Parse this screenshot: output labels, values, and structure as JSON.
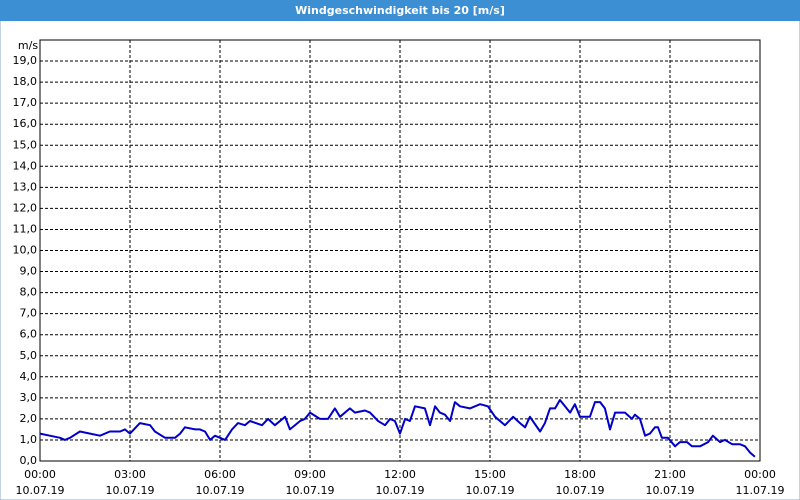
{
  "chart_data": {
    "type": "line",
    "title": "Windgeschwindigkeit bis 20 [m/s]",
    "y_label": "m/s",
    "xlim": [
      0,
      24
    ],
    "ylim": [
      0,
      20
    ],
    "xticks": [
      {
        "value": 0,
        "label": [
          "00:00",
          "10.07.19"
        ]
      },
      {
        "value": 3,
        "label": [
          "03:00",
          "10.07.19"
        ]
      },
      {
        "value": 6,
        "label": [
          "06:00",
          "10.07.19"
        ]
      },
      {
        "value": 9,
        "label": [
          "09:00",
          "10.07.19"
        ]
      },
      {
        "value": 12,
        "label": [
          "12:00",
          "10.07.19"
        ]
      },
      {
        "value": 15,
        "label": [
          "15:00",
          "10.07.19"
        ]
      },
      {
        "value": 18,
        "label": [
          "18:00",
          "10.07.19"
        ]
      },
      {
        "value": 21,
        "label": [
          "21:00",
          "10.07.19"
        ]
      },
      {
        "value": 24,
        "label": [
          "00:00",
          "11.07.19"
        ]
      }
    ],
    "yticks": [
      {
        "value": 0,
        "label": "0,0"
      },
      {
        "value": 1,
        "label": "1,0"
      },
      {
        "value": 2,
        "label": "2,0"
      },
      {
        "value": 3,
        "label": "3,0"
      },
      {
        "value": 4,
        "label": "4,0"
      },
      {
        "value": 5,
        "label": "5,0"
      },
      {
        "value": 6,
        "label": "6,0"
      },
      {
        "value": 7,
        "label": "7,0"
      },
      {
        "value": 8,
        "label": "8,0"
      },
      {
        "value": 9,
        "label": "9,0"
      },
      {
        "value": 10,
        "label": "10,0"
      },
      {
        "value": 11,
        "label": "11,0"
      },
      {
        "value": 12,
        "label": "12,0"
      },
      {
        "value": 13,
        "label": "13,0"
      },
      {
        "value": 14,
        "label": "14,0"
      },
      {
        "value": 15,
        "label": "15,0"
      },
      {
        "value": 16,
        "label": "16,0"
      },
      {
        "value": 17,
        "label": "17,0"
      },
      {
        "value": 18,
        "label": "18,0"
      },
      {
        "value": 19,
        "label": "19,0"
      }
    ],
    "grid": true,
    "x": [
      0,
      0.33,
      0.67,
      0.83,
      1,
      1.33,
      1.67,
      2,
      2.33,
      2.67,
      2.83,
      3,
      3.33,
      3.67,
      3.83,
      4.17,
      4.5,
      4.67,
      4.83,
      5.17,
      5.33,
      5.5,
      5.67,
      5.83,
      6.17,
      6.4,
      6.6,
      6.83,
      7,
      7.4,
      7.6,
      7.83,
      8.17,
      8.33,
      8.67,
      8.83,
      9,
      9.33,
      9.6,
      9.83,
      10,
      10.33,
      10.5,
      10.83,
      11,
      11.27,
      11.5,
      11.67,
      11.83,
      12,
      12.17,
      12.33,
      12.5,
      12.83,
      13,
      13.17,
      13.33,
      13.5,
      13.67,
      13.83,
      14,
      14.33,
      14.67,
      14.93,
      15.17,
      15.5,
      15.77,
      16,
      16.17,
      16.33,
      16.67,
      16.83,
      17,
      17.17,
      17.33,
      17.5,
      17.67,
      17.83,
      18,
      18.33,
      18.5,
      18.67,
      18.83,
      19,
      19.17,
      19.5,
      19.73,
      19.83,
      20,
      20.17,
      20.33,
      20.5,
      20.6,
      20.73,
      20.93,
      21.17,
      21.33,
      21.57,
      21.73,
      22,
      22.27,
      22.43,
      22.67,
      22.83,
      23.07,
      23.33,
      23.5,
      23.67,
      23.83
    ],
    "series": [
      {
        "color": "#0000c8",
        "values": [
          1.3,
          1.2,
          1.1,
          1.0,
          1.1,
          1.4,
          1.3,
          1.2,
          1.4,
          1.4,
          1.5,
          1.3,
          1.8,
          1.7,
          1.4,
          1.1,
          1.1,
          1.3,
          1.6,
          1.5,
          1.5,
          1.4,
          1.0,
          1.2,
          1.0,
          1.5,
          1.8,
          1.7,
          1.9,
          1.7,
          2.0,
          1.7,
          2.1,
          1.5,
          1.9,
          2.0,
          2.3,
          2.0,
          2.0,
          2.5,
          2.1,
          2.5,
          2.3,
          2.4,
          2.3,
          1.9,
          1.7,
          2.0,
          1.9,
          1.3,
          2.0,
          1.9,
          2.6,
          2.5,
          1.7,
          2.6,
          2.3,
          2.2,
          1.9,
          2.8,
          2.6,
          2.5,
          2.7,
          2.6,
          2.1,
          1.7,
          2.1,
          1.8,
          1.6,
          2.1,
          1.4,
          1.8,
          2.5,
          2.5,
          2.9,
          2.6,
          2.3,
          2.7,
          2.1,
          2.1,
          2.8,
          2.8,
          2.5,
          1.5,
          2.3,
          2.3,
          2.0,
          2.2,
          2.0,
          1.2,
          1.3,
          1.6,
          1.6,
          1.1,
          1.1,
          0.7,
          0.9,
          0.9,
          0.7,
          0.7,
          0.9,
          1.2,
          0.9,
          1.0,
          0.8,
          0.8,
          0.7,
          0.4,
          0.2
        ]
      }
    ]
  }
}
